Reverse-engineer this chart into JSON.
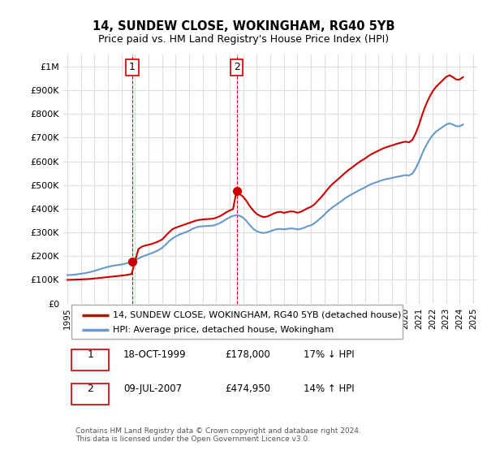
{
  "title": "14, SUNDEW CLOSE, WOKINGHAM, RG40 5YB",
  "subtitle": "Price paid vs. HM Land Registry's House Price Index (HPI)",
  "legend_line1": "14, SUNDEW CLOSE, WOKINGHAM, RG40 5YB (detached house)",
  "legend_line2": "HPI: Average price, detached house, Wokingham",
  "footnote": "Contains HM Land Registry data © Crown copyright and database right 2024.\nThis data is licensed under the Open Government Licence v3.0.",
  "sale1_label": "1",
  "sale1_date": "18-OCT-1999",
  "sale1_price": "£178,000",
  "sale1_hpi": "17% ↓ HPI",
  "sale2_label": "2",
  "sale2_date": "09-JUL-2007",
  "sale2_price": "£474,950",
  "sale2_hpi": "14% ↑ HPI",
  "line_color_red": "#cc0000",
  "line_color_blue": "#6699cc",
  "marker_color_red": "#cc0000",
  "dashed_color": "#cc0000",
  "background_color": "#ffffff",
  "grid_color": "#dddddd",
  "ylim": [
    0,
    1050000
  ],
  "yticks": [
    0,
    100000,
    200000,
    300000,
    400000,
    500000,
    600000,
    700000,
    800000,
    900000,
    1000000
  ],
  "ytick_labels": [
    "£0",
    "£100K",
    "£200K",
    "£300K",
    "£400K",
    "£500K",
    "£600K",
    "£700K",
    "£800K",
    "£900K",
    "£1M"
  ],
  "sale1_x": 1999.79,
  "sale1_y": 178000,
  "sale2_x": 2007.52,
  "sale2_y": 474950,
  "vline1_x": 1999.79,
  "vline2_x": 2007.52,
  "hpi_years": [
    1995.0,
    1995.25,
    1995.5,
    1995.75,
    1996.0,
    1996.25,
    1996.5,
    1996.75,
    1997.0,
    1997.25,
    1997.5,
    1997.75,
    1998.0,
    1998.25,
    1998.5,
    1998.75,
    1999.0,
    1999.25,
    1999.5,
    1999.75,
    2000.0,
    2000.25,
    2000.5,
    2000.75,
    2001.0,
    2001.25,
    2001.5,
    2001.75,
    2002.0,
    2002.25,
    2002.5,
    2002.75,
    2003.0,
    2003.25,
    2003.5,
    2003.75,
    2004.0,
    2004.25,
    2004.5,
    2004.75,
    2005.0,
    2005.25,
    2005.5,
    2005.75,
    2006.0,
    2006.25,
    2006.5,
    2006.75,
    2007.0,
    2007.25,
    2007.5,
    2007.75,
    2008.0,
    2008.25,
    2008.5,
    2008.75,
    2009.0,
    2009.25,
    2009.5,
    2009.75,
    2010.0,
    2010.25,
    2010.5,
    2010.75,
    2011.0,
    2011.25,
    2011.5,
    2011.75,
    2012.0,
    2012.25,
    2012.5,
    2012.75,
    2013.0,
    2013.25,
    2013.5,
    2013.75,
    2014.0,
    2014.25,
    2014.5,
    2014.75,
    2015.0,
    2015.25,
    2015.5,
    2015.75,
    2016.0,
    2016.25,
    2016.5,
    2016.75,
    2017.0,
    2017.25,
    2017.5,
    2017.75,
    2018.0,
    2018.25,
    2018.5,
    2018.75,
    2019.0,
    2019.25,
    2019.5,
    2019.75,
    2020.0,
    2020.25,
    2020.5,
    2020.75,
    2021.0,
    2021.25,
    2021.5,
    2021.75,
    2022.0,
    2022.25,
    2022.5,
    2022.75,
    2023.0,
    2023.25,
    2023.5,
    2023.75,
    2024.0,
    2024.25
  ],
  "hpi_values": [
    120000,
    121000,
    122000,
    124000,
    126000,
    128000,
    131000,
    134000,
    138000,
    142000,
    147000,
    151000,
    155000,
    158000,
    161000,
    163000,
    165000,
    168000,
    172000,
    177000,
    183000,
    190000,
    197000,
    203000,
    208000,
    213000,
    219000,
    226000,
    235000,
    248000,
    262000,
    274000,
    283000,
    290000,
    296000,
    301000,
    307000,
    315000,
    321000,
    325000,
    326000,
    327000,
    328000,
    329000,
    333000,
    339000,
    347000,
    356000,
    364000,
    370000,
    373000,
    370000,
    362000,
    348000,
    330000,
    315000,
    305000,
    300000,
    298000,
    300000,
    305000,
    310000,
    314000,
    315000,
    313000,
    315000,
    317000,
    316000,
    313000,
    315000,
    320000,
    326000,
    330000,
    338000,
    350000,
    362000,
    375000,
    390000,
    402000,
    412000,
    422000,
    432000,
    443000,
    452000,
    460000,
    468000,
    476000,
    483000,
    490000,
    498000,
    505000,
    510000,
    515000,
    520000,
    524000,
    527000,
    530000,
    533000,
    536000,
    539000,
    542000,
    540000,
    548000,
    570000,
    600000,
    635000,
    665000,
    690000,
    710000,
    725000,
    735000,
    745000,
    755000,
    760000,
    755000,
    748000,
    748000,
    755000
  ],
  "price_years": [
    1995.0,
    1995.25,
    1995.5,
    1995.75,
    1996.0,
    1996.25,
    1996.5,
    1996.75,
    1997.0,
    1997.25,
    1997.5,
    1997.75,
    1998.0,
    1998.25,
    1998.5,
    1998.75,
    1999.0,
    1999.25,
    1999.5,
    1999.75,
    2000.0,
    2000.25,
    2000.5,
    2000.75,
    2001.0,
    2001.25,
    2001.5,
    2001.75,
    2002.0,
    2002.25,
    2002.5,
    2002.75,
    2003.0,
    2003.25,
    2003.5,
    2003.75,
    2004.0,
    2004.25,
    2004.5,
    2004.75,
    2005.0,
    2005.25,
    2005.5,
    2005.75,
    2006.0,
    2006.25,
    2006.5,
    2006.75,
    2007.0,
    2007.25,
    2007.5,
    2007.75,
    2008.0,
    2008.25,
    2008.5,
    2008.75,
    2009.0,
    2009.25,
    2009.5,
    2009.75,
    2010.0,
    2010.25,
    2010.5,
    2010.75,
    2011.0,
    2011.25,
    2011.5,
    2011.75,
    2012.0,
    2012.25,
    2012.5,
    2012.75,
    2013.0,
    2013.25,
    2013.5,
    2013.75,
    2014.0,
    2014.25,
    2014.5,
    2014.75,
    2015.0,
    2015.25,
    2015.5,
    2015.75,
    2016.0,
    2016.25,
    2016.5,
    2016.75,
    2017.0,
    2017.25,
    2017.5,
    2017.75,
    2018.0,
    2018.25,
    2018.5,
    2018.75,
    2019.0,
    2019.25,
    2019.5,
    2019.75,
    2020.0,
    2020.25,
    2020.5,
    2020.75,
    2021.0,
    2021.25,
    2021.5,
    2021.75,
    2022.0,
    2022.25,
    2022.5,
    2022.75,
    2023.0,
    2023.25,
    2023.5,
    2023.75,
    2024.0,
    2024.25
  ],
  "price_values": [
    100000,
    100500,
    101000,
    101500,
    102000,
    102800,
    103500,
    104500,
    106000,
    107500,
    109000,
    110500,
    112000,
    113500,
    115000,
    116500,
    118000,
    120000,
    122000,
    125000,
    178000,
    230000,
    240000,
    245000,
    248000,
    252000,
    257000,
    263000,
    270000,
    285000,
    300000,
    313000,
    320000,
    325000,
    330000,
    335000,
    340000,
    345000,
    350000,
    353000,
    355000,
    356000,
    357000,
    358000,
    362000,
    368000,
    376000,
    385000,
    393000,
    399000,
    474950,
    462000,
    450000,
    432000,
    410000,
    392000,
    378000,
    370000,
    365000,
    367000,
    373000,
    380000,
    385000,
    387000,
    383000,
    386000,
    389000,
    388000,
    383000,
    387000,
    394000,
    402000,
    408000,
    418000,
    433000,
    448000,
    465000,
    483000,
    499000,
    512000,
    524000,
    537000,
    550000,
    562000,
    572000,
    583000,
    594000,
    603000,
    612000,
    622000,
    631000,
    638000,
    645000,
    652000,
    658000,
    663000,
    667000,
    672000,
    676000,
    680000,
    683000,
    680000,
    690000,
    718000,
    755000,
    800000,
    838000,
    869000,
    895000,
    914000,
    928000,
    942000,
    956000,
    963000,
    955000,
    945000,
    945000,
    955000
  ],
  "xtick_years": [
    1995,
    1996,
    1997,
    1998,
    1999,
    2000,
    2001,
    2002,
    2003,
    2004,
    2005,
    2006,
    2007,
    2008,
    2009,
    2010,
    2011,
    2012,
    2013,
    2014,
    2015,
    2016,
    2017,
    2018,
    2019,
    2020,
    2021,
    2022,
    2023,
    2024,
    2025
  ]
}
